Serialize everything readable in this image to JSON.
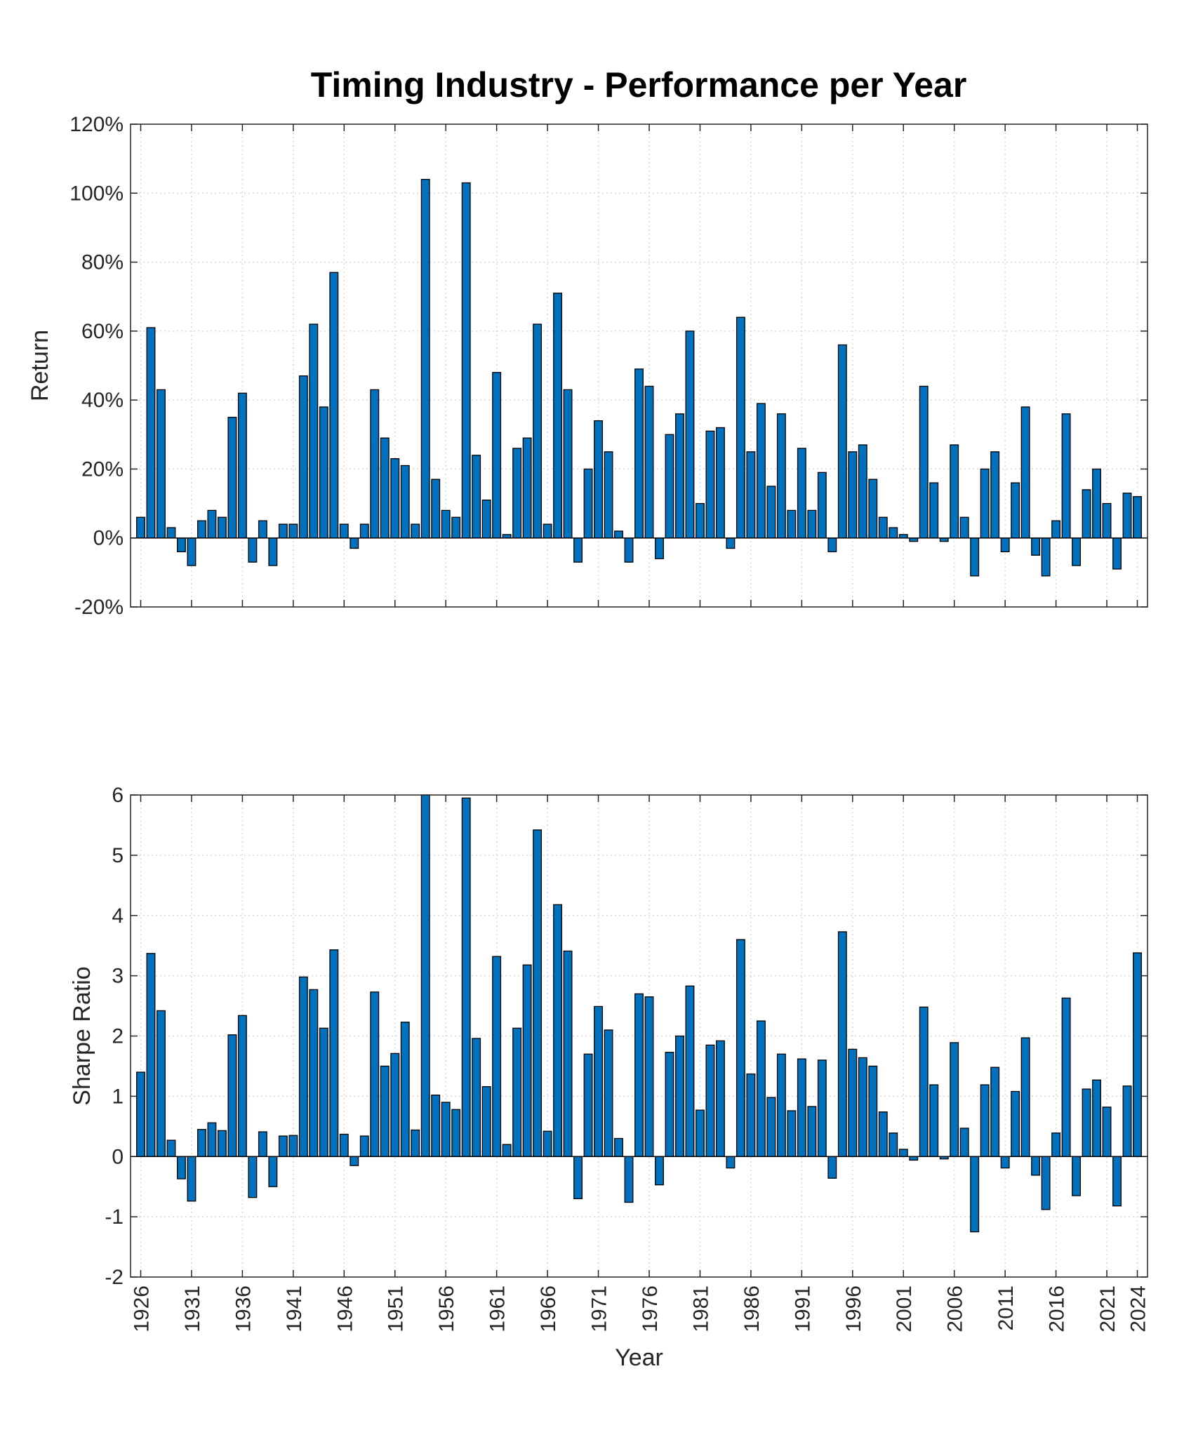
{
  "chart_data": [
    {
      "type": "bar",
      "title": "Timing Industry - Performance per Year",
      "ylabel": "Return",
      "color": "#0072BD",
      "grid": true,
      "x": [
        1926,
        1927,
        1928,
        1929,
        1930,
        1931,
        1932,
        1933,
        1934,
        1935,
        1936,
        1937,
        1938,
        1939,
        1940,
        1941,
        1942,
        1943,
        1944,
        1945,
        1946,
        1947,
        1948,
        1949,
        1950,
        1951,
        1952,
        1953,
        1954,
        1955,
        1956,
        1957,
        1958,
        1959,
        1960,
        1961,
        1962,
        1963,
        1964,
        1965,
        1966,
        1967,
        1968,
        1969,
        1970,
        1971,
        1972,
        1973,
        1974,
        1975,
        1976,
        1977,
        1978,
        1979,
        1980,
        1981,
        1982,
        1983,
        1984,
        1985,
        1986,
        1987,
        1988,
        1989,
        1990,
        1991,
        1992,
        1993,
        1994,
        1995,
        1996,
        1997,
        1998,
        1999,
        2000,
        2001,
        2002,
        2003,
        2004,
        2005,
        2006,
        2007,
        2008,
        2009,
        2010,
        2011,
        2012,
        2013,
        2014,
        2015,
        2016,
        2017,
        2018,
        2019,
        2020,
        2021,
        2022,
        2023,
        2024
      ],
      "values": [
        6,
        61,
        43,
        3,
        -4,
        -8,
        5,
        8,
        6,
        35,
        42,
        -7,
        5,
        -8,
        4,
        4,
        47,
        62,
        38,
        77,
        4,
        -3,
        4,
        43,
        29,
        23,
        21,
        4,
        104,
        17,
        8,
        6,
        103,
        24,
        11,
        48,
        1,
        26,
        29,
        62,
        4,
        71,
        43,
        -7,
        20,
        34,
        25,
        2,
        -7,
        49,
        44,
        -6,
        30,
        36,
        60,
        10,
        31,
        32,
        -3,
        64,
        25,
        39,
        15,
        36,
        8,
        26,
        8,
        19,
        -4,
        56,
        25,
        27,
        17,
        6,
        3,
        1,
        -1,
        44,
        16,
        -1,
        27,
        6,
        -11,
        20,
        25,
        -4,
        16,
        38,
        -5,
        -11,
        5,
        36,
        -8,
        14,
        20,
        10,
        -9,
        13,
        12
      ],
      "xlim": [
        1925,
        2025
      ],
      "ylim": [
        -20,
        120
      ],
      "yticks": [
        {
          "value": -20,
          "label": "-20%"
        },
        {
          "value": 0,
          "label": "0%"
        },
        {
          "value": 20,
          "label": "20%"
        },
        {
          "value": 40,
          "label": "40%"
        },
        {
          "value": 60,
          "label": "60%"
        },
        {
          "value": 80,
          "label": "80%"
        },
        {
          "value": 100,
          "label": "100%"
        },
        {
          "value": 120,
          "label": "120%"
        }
      ]
    },
    {
      "type": "bar",
      "ylabel": "Sharpe Ratio",
      "xlabel": "Year",
      "color": "#0072BD",
      "grid": true,
      "x": [
        1926,
        1927,
        1928,
        1929,
        1930,
        1931,
        1932,
        1933,
        1934,
        1935,
        1936,
        1937,
        1938,
        1939,
        1940,
        1941,
        1942,
        1943,
        1944,
        1945,
        1946,
        1947,
        1948,
        1949,
        1950,
        1951,
        1952,
        1953,
        1954,
        1955,
        1956,
        1957,
        1958,
        1959,
        1960,
        1961,
        1962,
        1963,
        1964,
        1965,
        1966,
        1967,
        1968,
        1969,
        1970,
        1971,
        1972,
        1973,
        1974,
        1975,
        1976,
        1977,
        1978,
        1979,
        1980,
        1981,
        1982,
        1983,
        1984,
        1985,
        1986,
        1987,
        1988,
        1989,
        1990,
        1991,
        1992,
        1993,
        1994,
        1995,
        1996,
        1997,
        1998,
        1999,
        2000,
        2001,
        2002,
        2003,
        2004,
        2005,
        2006,
        2007,
        2008,
        2009,
        2010,
        2011,
        2012,
        2013,
        2014,
        2015,
        2016,
        2017,
        2018,
        2019,
        2020,
        2021,
        2022,
        2023,
        2024
      ],
      "values": [
        1.4,
        3.37,
        2.42,
        0.27,
        -0.37,
        -0.74,
        0.45,
        0.56,
        0.43,
        2.02,
        2.34,
        -0.68,
        0.41,
        -0.5,
        0.34,
        0.35,
        2.98,
        2.77,
        2.13,
        3.43,
        0.37,
        -0.15,
        0.34,
        2.73,
        1.5,
        1.71,
        2.23,
        0.44,
        6.0,
        1.02,
        0.9,
        0.78,
        5.95,
        1.96,
        1.16,
        3.32,
        0.2,
        2.13,
        3.18,
        5.42,
        0.42,
        4.18,
        3.41,
        -0.7,
        1.7,
        2.49,
        2.1,
        0.3,
        -0.76,
        2.7,
        2.65,
        -0.47,
        1.73,
        2.0,
        2.83,
        0.77,
        1.85,
        1.92,
        -0.19,
        3.6,
        1.37,
        2.25,
        0.98,
        1.7,
        0.76,
        1.62,
        0.83,
        1.6,
        -0.36,
        3.73,
        1.78,
        1.64,
        1.5,
        0.74,
        0.39,
        0.12,
        -0.06,
        2.48,
        1.19,
        -0.04,
        1.89,
        0.47,
        -1.25,
        1.19,
        1.48,
        -0.19,
        1.08,
        1.97,
        -0.31,
        -0.88,
        0.39,
        2.63,
        -0.65,
        1.12,
        1.27,
        0.82,
        -0.82,
        1.17,
        3.38
      ],
      "xlim": [
        1925,
        2025
      ],
      "ylim": [
        -2,
        6
      ],
      "yticks": [
        -2,
        -1,
        0,
        1,
        2,
        3,
        4,
        5,
        6
      ],
      "xticks": [
        1926,
        1931,
        1936,
        1941,
        1946,
        1951,
        1956,
        1961,
        1966,
        1971,
        1976,
        1981,
        1986,
        1991,
        1996,
        2001,
        2006,
        2011,
        2016,
        2021,
        2024
      ]
    }
  ]
}
